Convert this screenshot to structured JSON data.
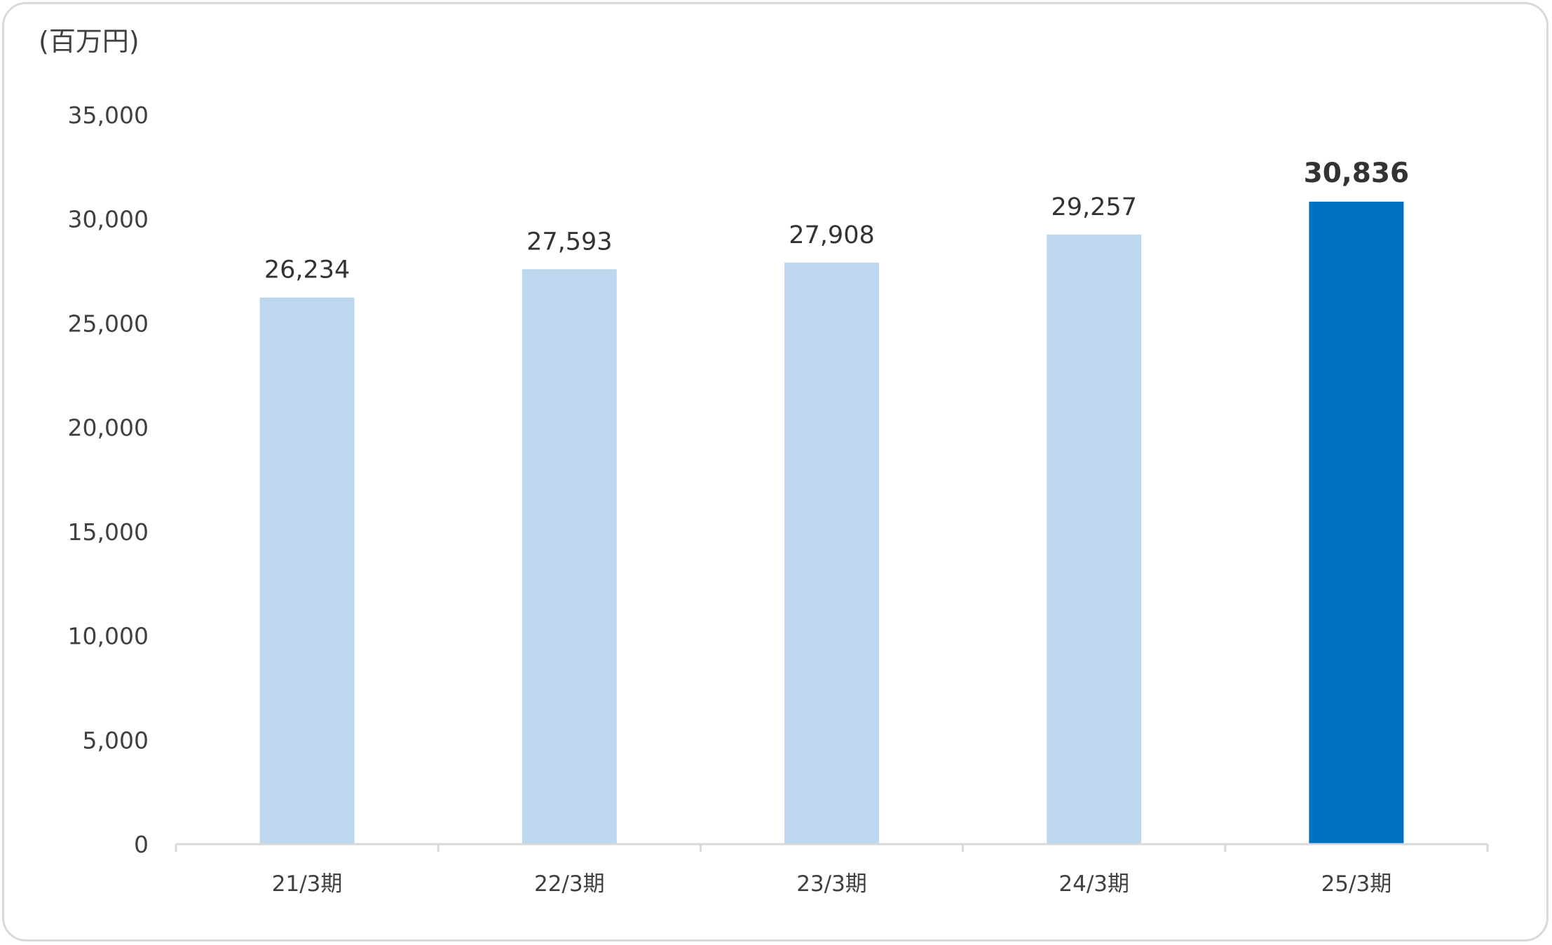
{
  "chart_data": {
    "type": "bar",
    "unit_label": "(百万円)",
    "categories": [
      "21/3期",
      "22/3期",
      "23/3期",
      "24/3期",
      "25/3期"
    ],
    "values": [
      26234,
      27593,
      27908,
      29257,
      30836
    ],
    "value_labels": [
      "26,234",
      "27,593",
      "27,908",
      "29,257",
      "30,836"
    ],
    "ylim": [
      0,
      35000
    ],
    "yticks": [
      0,
      5000,
      10000,
      15000,
      20000,
      25000,
      30000,
      35000
    ],
    "ytick_labels": [
      "0",
      "5,000",
      "10,000",
      "15,000",
      "20,000",
      "25,000",
      "30,000",
      "35,000"
    ],
    "grid": false,
    "legend": "none",
    "highlight_index": 4,
    "colors": {
      "bar": "#bdd7ee",
      "highlight_bar": "#0070c0",
      "highlight_label": "#0070c0",
      "axis": "#d9d9d9",
      "text": "#404040"
    }
  }
}
